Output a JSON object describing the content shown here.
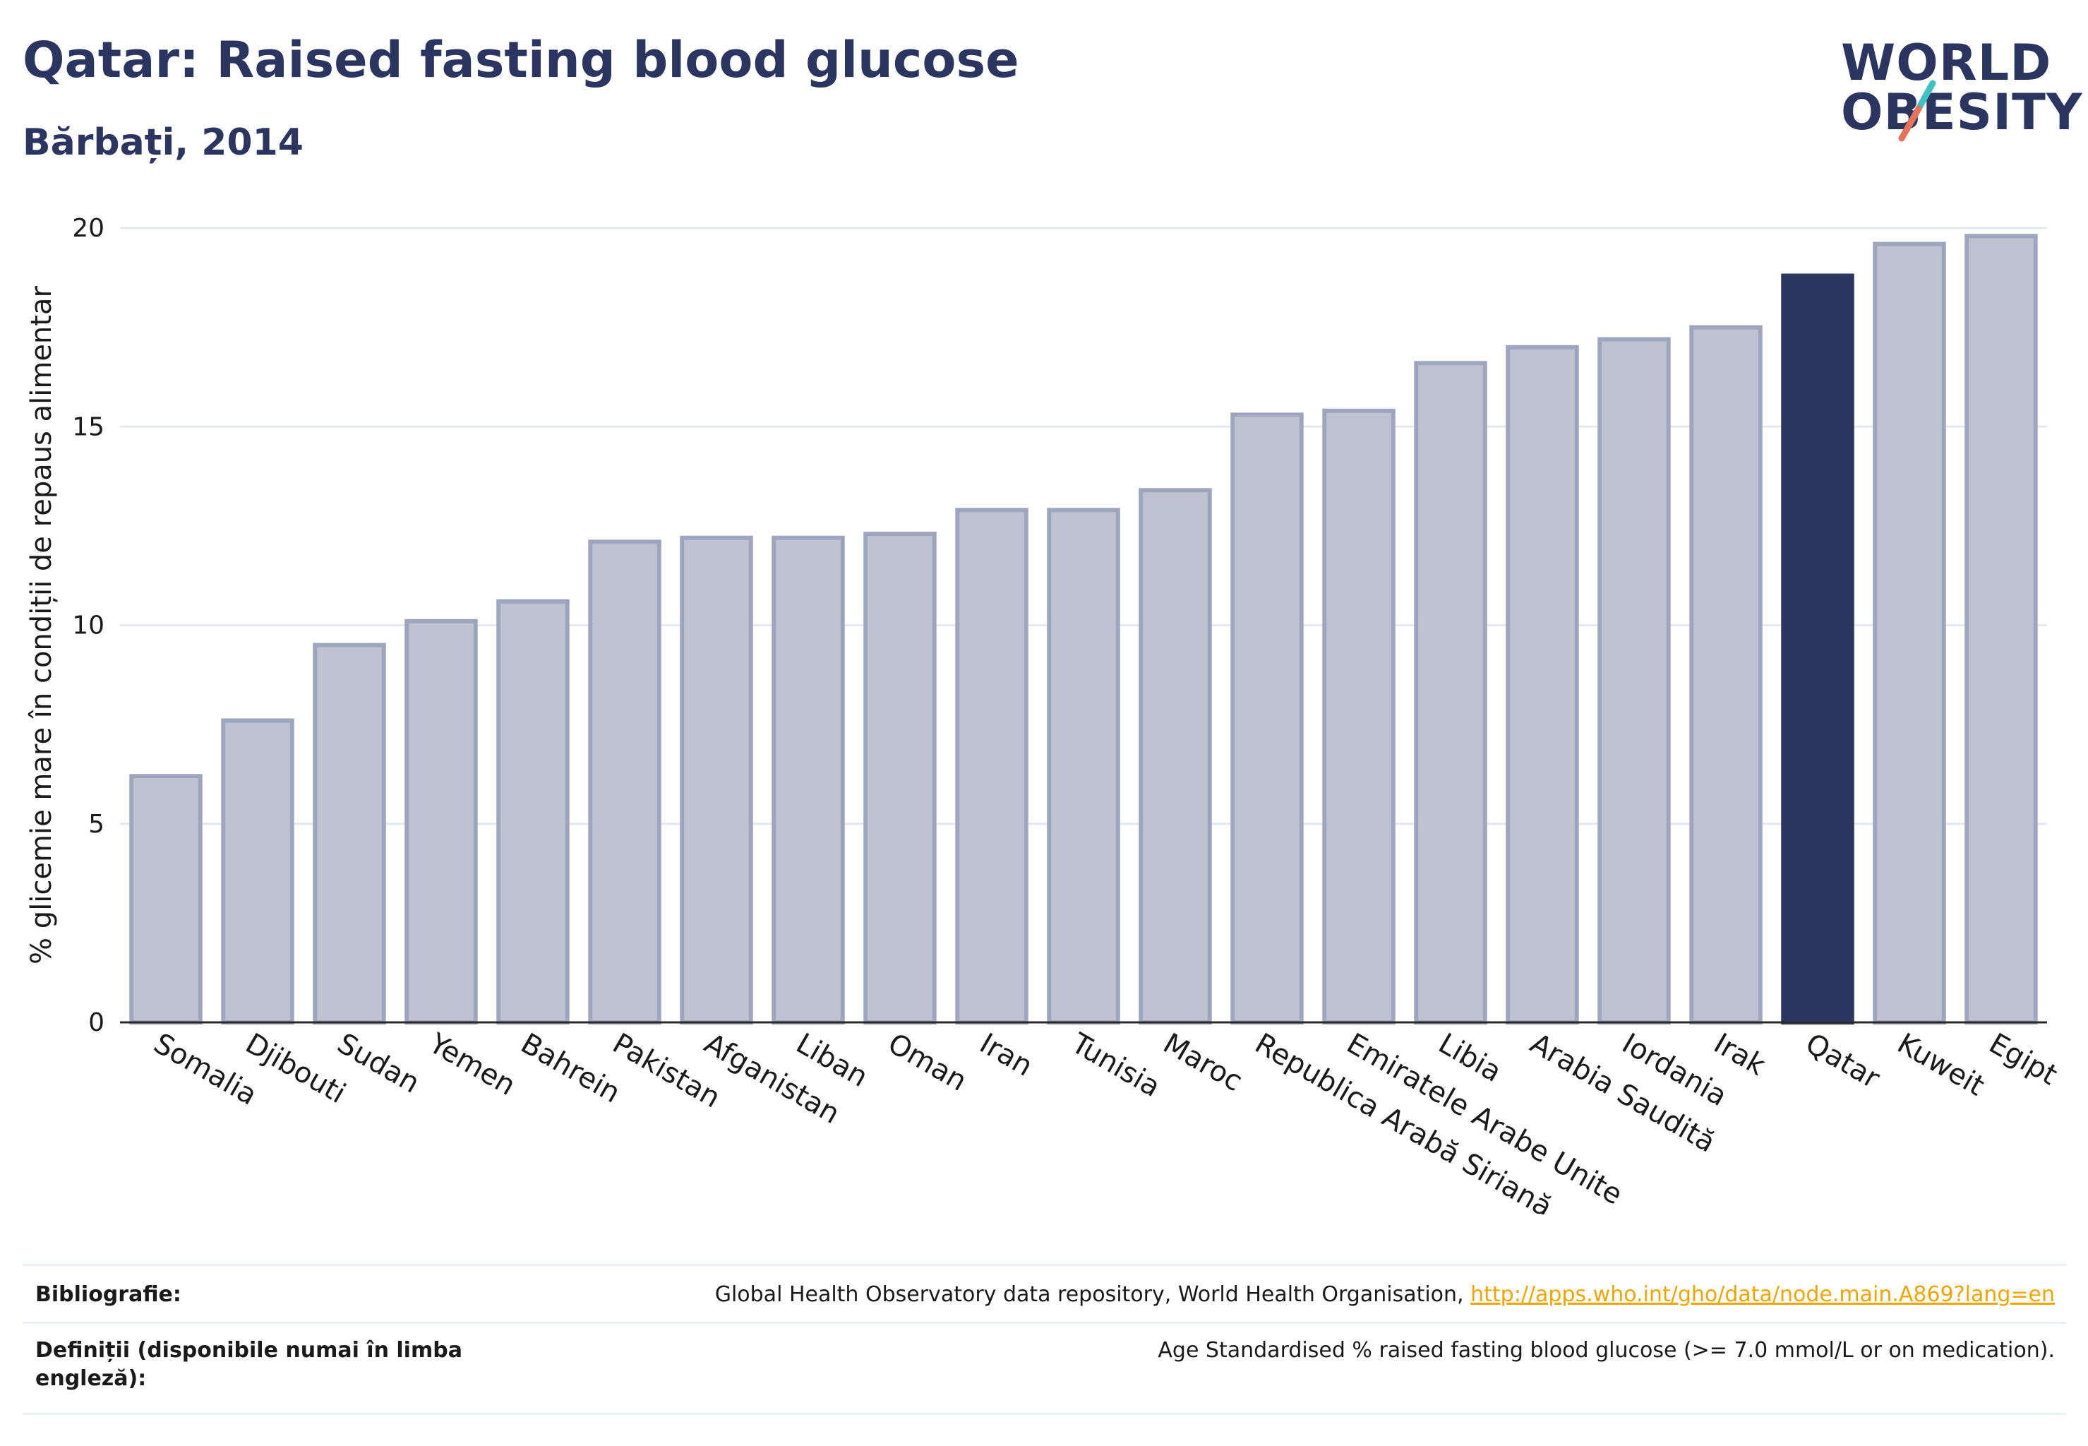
{
  "header": {
    "title": "Qatar: Raised fasting blood glucose",
    "subtitle": "Bărbați, 2014"
  },
  "logo": {
    "line1": "WORLD",
    "line2": "OBESITY",
    "accent_colors": [
      "#3fc1c0",
      "#e8715a"
    ]
  },
  "chart_data": {
    "type": "bar",
    "title": "Qatar: Raised fasting blood glucose",
    "subtitle": "Bărbați, 2014",
    "xlabel": "",
    "ylabel": "% glicemie mare în condiții de repaus alimentar",
    "ylim": [
      0,
      20
    ],
    "yticks": [
      0,
      5,
      10,
      15,
      20
    ],
    "grid": true,
    "categories": [
      "Somalia",
      "Djibouti",
      "Sudan",
      "Yemen",
      "Bahrein",
      "Pakistan",
      "Afganistan",
      "Liban",
      "Oman",
      "Iran",
      "Tunisia",
      "Maroc",
      "Republica Arabă Siriană",
      "Emiratele Arabe Unite",
      "Libia",
      "Arabia Saudită",
      "Iordania",
      "Irak",
      "Qatar",
      "Kuweit",
      "Egipt"
    ],
    "values": [
      6.2,
      7.6,
      9.5,
      10.1,
      10.6,
      12.1,
      12.2,
      12.2,
      12.3,
      12.9,
      12.9,
      13.4,
      15.3,
      15.4,
      16.6,
      17.0,
      17.2,
      17.5,
      18.8,
      19.6,
      19.8
    ],
    "highlight": "Qatar",
    "colors": {
      "bar": "#bfc3d1",
      "bar_border": "#9ea5bd",
      "highlight": "#2b3560",
      "grid": "#e6e8ef",
      "axis": "#2a2a2a"
    }
  },
  "footer": {
    "bibliography_label": "Bibliografie:",
    "bibliography_text": "Global Health Observatory data repository, World Health Organisation,",
    "bibliography_link": "http://apps.who.int/gho/data/node.main.A869?lang=en",
    "definitions_label": "Definiții (disponibile numai în limba engleză):",
    "definitions_text": "Age Standardised % raised fasting blood glucose (>= 7.0 mmol/L or on medication)."
  }
}
